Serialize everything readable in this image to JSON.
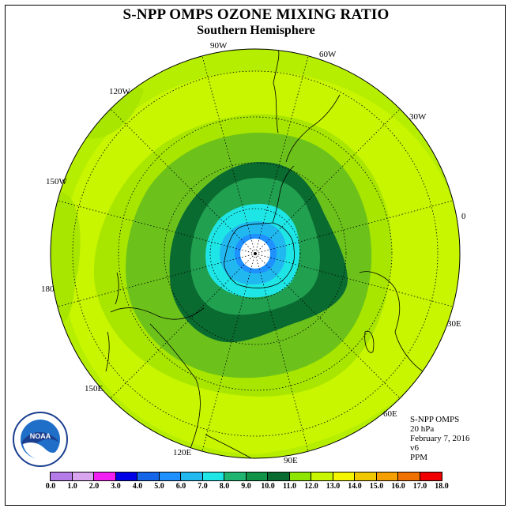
{
  "title": "S-NPP OMPS OZONE MIXING RATIO",
  "subtitle": "Southern Hemisphere",
  "longitude_labels": {
    "w90": "90W",
    "w60": "60W",
    "w30": "30W",
    "e0": "0",
    "w120": "120W",
    "w150": "150W",
    "e180": "180",
    "e30": "30E",
    "e150": "150E",
    "e60": "60E",
    "e120": "120E",
    "e90": "90E"
  },
  "info": {
    "instrument": "S-NPP OMPS",
    "level": "20 hPa",
    "date": "February 7, 2016",
    "version": "v6",
    "units": "PPM"
  },
  "logo": {
    "text": "NOAA",
    "name": "noaa-logo"
  },
  "colorbar": {
    "ticks": [
      "0.0",
      "1.0",
      "2.0",
      "3.0",
      "4.0",
      "5.0",
      "6.0",
      "7.0",
      "8.0",
      "9.0",
      "10.0",
      "11.0",
      "12.0",
      "13.0",
      "14.0",
      "15.0",
      "16.0",
      "17.0",
      "18.0"
    ],
    "colors": [
      "#b57be8",
      "#d9a5ee",
      "#f21ef2",
      "#0000e6",
      "#1565e8",
      "#1e90ff",
      "#21b8f0",
      "#1fe6e6",
      "#21b572",
      "#119448",
      "#0a6b30",
      "#8ee600",
      "#c8f500",
      "#f5f500",
      "#f0c800",
      "#f5a000",
      "#f07000",
      "#f00000",
      "#6b4a30"
    ]
  },
  "map_colors": {
    "ring_outer": "#b5ee00",
    "band_12": "#c8f500",
    "band_11": "#a8e600",
    "band_10": "#6cc21a",
    "band_9": "#0a6b30",
    "band_8": "#21a050",
    "band_7": "#1fe6e6",
    "band_6": "#21b8f0",
    "band_5": "#1e90ff",
    "pole": "#ffffff"
  }
}
